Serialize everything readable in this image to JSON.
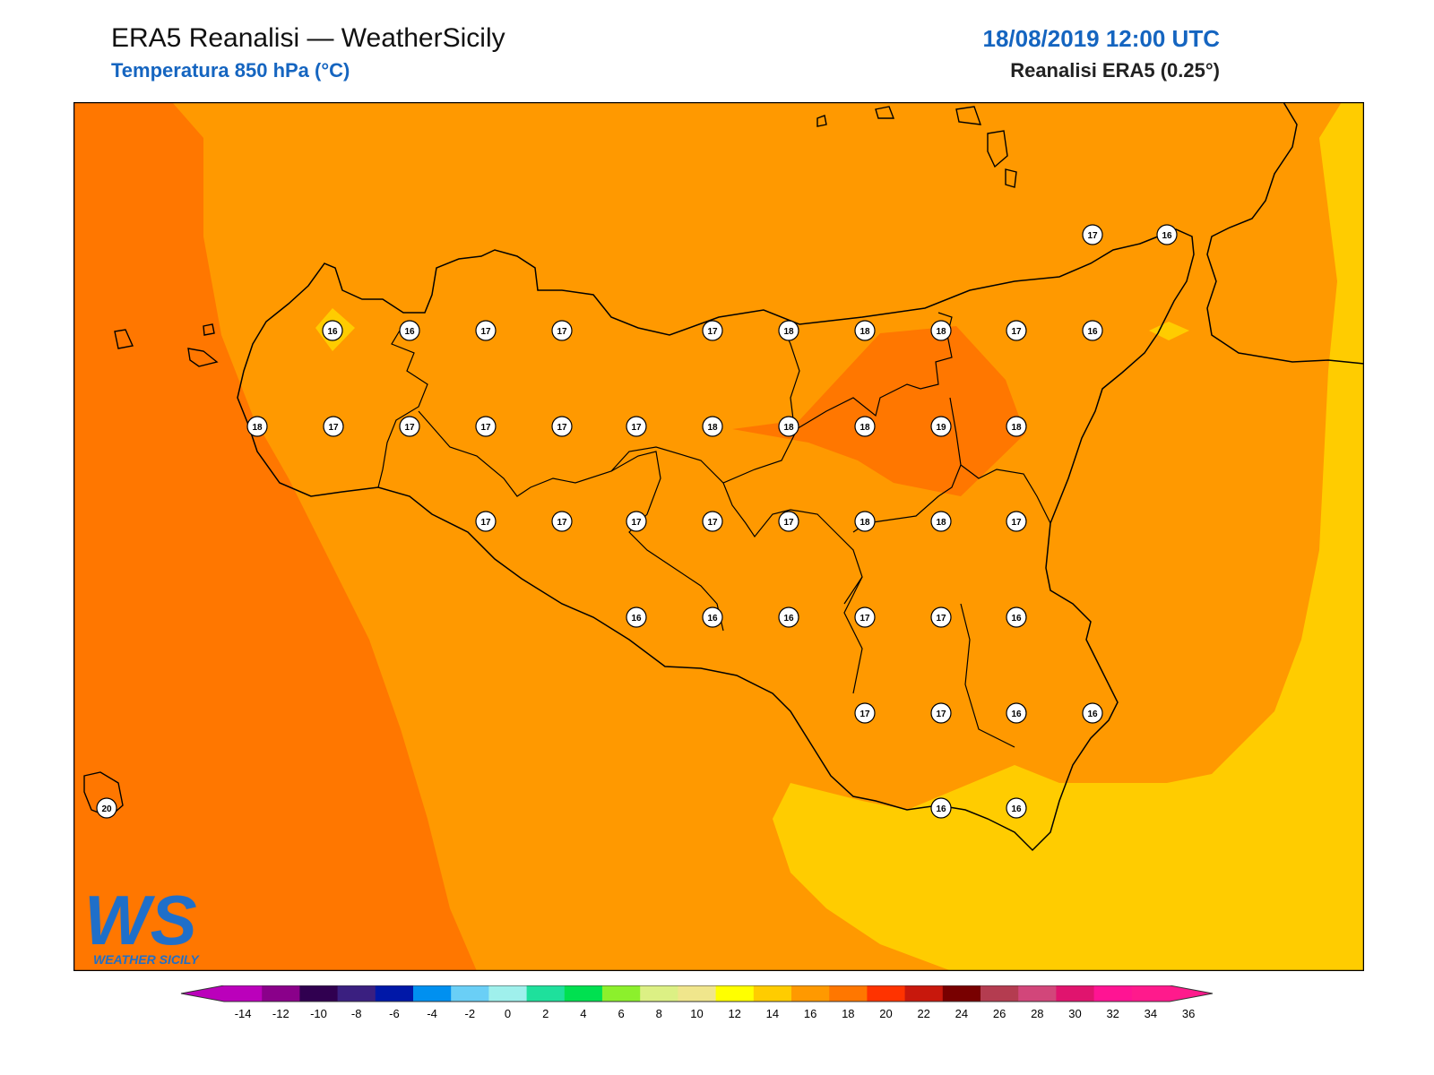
{
  "header": {
    "title": "ERA5 Reanalisi — WeatherSicily",
    "variable": "Temperatura 850 hPa (°C)",
    "datetime": "18/08/2019 12:00 UTC",
    "model": "Reanalisi ERA5 (0.25°)"
  },
  "logo": {
    "text": "WEATHER SICILY",
    "letters": "WS"
  },
  "chart_data": {
    "type": "heatmap",
    "variable": "Temperatura 850 hPa",
    "unit": "°C",
    "colorbar": {
      "ticks": [
        -14,
        -12,
        -10,
        -8,
        -6,
        -4,
        -2,
        0,
        2,
        4,
        6,
        8,
        10,
        12,
        14,
        16,
        18,
        20,
        22,
        24,
        26,
        28,
        30,
        32,
        34,
        36
      ],
      "colors": [
        "#bb00bb",
        "#8a008a",
        "#300050",
        "#3a1f80",
        "#0018a8",
        "#0090f0",
        "#6acff6",
        "#9ff0ec",
        "#1ee09c",
        "#00e050",
        "#8cf02c",
        "#dcf084",
        "#f0e68c",
        "#ffff00",
        "#ffcc00",
        "#ff9900",
        "#ff7700",
        "#ff3300",
        "#c8180c",
        "#780000",
        "#b43c50",
        "#d2467a",
        "#e0146e",
        "#ff1493",
        "#ff1a8c"
      ]
    },
    "station_values": [
      {
        "value": 16
      },
      {
        "value": 16
      },
      {
        "value": 17
      },
      {
        "value": 17
      },
      {
        "value": 17
      },
      {
        "value": 18
      },
      {
        "value": 18
      },
      {
        "value": 18
      },
      {
        "value": 17
      },
      {
        "value": 16
      },
      {
        "value": 18
      },
      {
        "value": 17
      },
      {
        "value": 17
      },
      {
        "value": 17
      },
      {
        "value": 17
      },
      {
        "value": 17
      },
      {
        "value": 18
      },
      {
        "value": 18
      },
      {
        "value": 18
      },
      {
        "value": 19
      },
      {
        "value": 18
      },
      {
        "value": 17
      },
      {
        "value": 17
      },
      {
        "value": 17
      },
      {
        "value": 17
      },
      {
        "value": 17
      },
      {
        "value": 18
      },
      {
        "value": 18
      },
      {
        "value": 17
      },
      {
        "value": 16
      },
      {
        "value": 16
      },
      {
        "value": 16
      },
      {
        "value": 17
      },
      {
        "value": 17
      },
      {
        "value": 16
      },
      {
        "value": 17
      },
      {
        "value": 17
      },
      {
        "value": 16
      },
      {
        "value": 16
      },
      {
        "value": 16
      },
      {
        "value": 16
      },
      {
        "value": 17
      },
      {
        "value": 16
      },
      {
        "value": 20
      }
    ]
  }
}
